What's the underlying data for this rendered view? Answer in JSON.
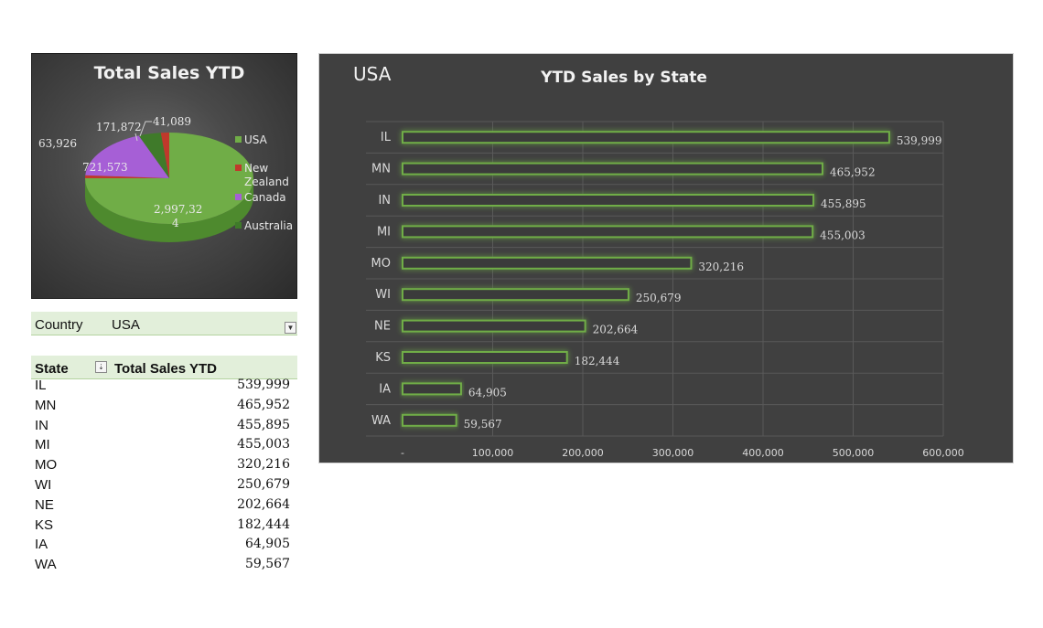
{
  "pie_chart": {
    "title": "Total Sales YTD",
    "slice_labels": {
      "USA": [
        "2,997,32",
        "4"
      ],
      "New Zealand": "41,089",
      "Canada": "721,573",
      "Australia": "171,872",
      "other": "63,926"
    },
    "legend": [
      {
        "label": [
          "USA"
        ],
        "color": "#70ad47"
      },
      {
        "label": [
          "New",
          "Zealand"
        ],
        "color": "#c0392b"
      },
      {
        "label": [
          "Canada"
        ],
        "color": "#a65fd6"
      },
      {
        "label": [
          "Australia"
        ],
        "color": "#3f7a2a"
      }
    ]
  },
  "pivot": {
    "filter_field": "Country",
    "filter_value": "USA",
    "row_header": "State",
    "value_header": "Total Sales YTD",
    "rows": [
      {
        "state": "IL",
        "value": "539,999"
      },
      {
        "state": "MN",
        "value": "465,952"
      },
      {
        "state": "IN",
        "value": "455,895"
      },
      {
        "state": "MI",
        "value": "455,003"
      },
      {
        "state": "MO",
        "value": "320,216"
      },
      {
        "state": "WI",
        "value": "250,679"
      },
      {
        "state": "NE",
        "value": "202,664"
      },
      {
        "state": "KS",
        "value": "182,444"
      },
      {
        "state": "IA",
        "value": "64,905"
      },
      {
        "state": "WA",
        "value": "59,567"
      }
    ]
  },
  "chart_data": [
    {
      "type": "pie",
      "title": "Total Sales YTD",
      "categories": [
        "USA",
        "New Zealand",
        "Canada",
        "Australia",
        ""
      ],
      "values": [
        2997324,
        41089,
        721573,
        171872,
        63926
      ],
      "colors": [
        "#70ad47",
        "#c0392b",
        "#a65fd6",
        "#3f7a2a",
        "#c0392b"
      ],
      "legend": "right"
    },
    {
      "type": "bar",
      "orientation": "horizontal",
      "subtitle": "USA",
      "title": "YTD Sales by  State",
      "categories": [
        "IL",
        "MN",
        "IN",
        "MI",
        "MO",
        "WI",
        "NE",
        "KS",
        "IA",
        "WA"
      ],
      "values": [
        539999,
        465952,
        455895,
        455003,
        320216,
        250679,
        202664,
        182444,
        64905,
        59567
      ],
      "data_labels": [
        "539,999",
        "465,952",
        "455,895",
        "455,003",
        "320,216",
        "250,679",
        "202,664",
        "182,444",
        "64,905",
        "59,567"
      ],
      "xlim": [
        0,
        600000
      ],
      "x_ticks": [
        "-",
        "100,000",
        "200,000",
        "300,000",
        "400,000",
        "500,000",
        "600,000"
      ],
      "grid": true,
      "bar_color": "#70ad47",
      "background": "#404040"
    }
  ]
}
